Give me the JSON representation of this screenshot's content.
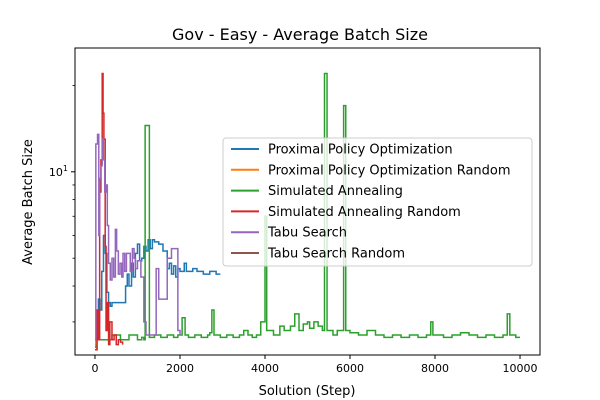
{
  "chart_data": {
    "type": "line",
    "title": "Gov - Easy - Average Batch Size",
    "xlabel": "Solution (Step)",
    "ylabel": "Average Batch Size",
    "x_ticks": [
      0,
      2000,
      4000,
      6000,
      8000,
      10000
    ],
    "x_tick_labels": [
      "0",
      "2000",
      "4000",
      "6000",
      "8000",
      "10000"
    ],
    "xlim": [
      -470,
      10470
    ],
    "y_scale": "log",
    "ylim": [
      2.3,
      27
    ],
    "y_major_ticks": [
      10
    ],
    "y_major_tick_labels": [
      "10^1"
    ],
    "y_minor_ticks": [
      3,
      4,
      5,
      6,
      7,
      8,
      9,
      20
    ],
    "grid": false,
    "legend_position": "center-right",
    "series": [
      {
        "name": "Proximal Policy Optimization",
        "color": "#1f77b4",
        "points": [
          [
            0,
            2.4
          ],
          [
            40,
            3.0
          ],
          [
            80,
            3.6
          ],
          [
            120,
            3.3
          ],
          [
            160,
            4.5
          ],
          [
            200,
            6.0
          ],
          [
            240,
            5.2
          ],
          [
            280,
            3.8
          ],
          [
            320,
            3.5
          ],
          [
            360,
            3.4
          ],
          [
            400,
            3.5
          ],
          [
            700,
            3.5
          ],
          [
            720,
            4.0
          ],
          [
            760,
            4.4
          ],
          [
            800,
            4.0
          ],
          [
            860,
            4.8
          ],
          [
            900,
            4.3
          ],
          [
            950,
            5.2
          ],
          [
            1000,
            5.6
          ],
          [
            1050,
            4.9
          ],
          [
            1100,
            5.0
          ],
          [
            1150,
            5.5
          ],
          [
            1200,
            5.3
          ],
          [
            1250,
            5.8
          ],
          [
            1300,
            5.4
          ],
          [
            1350,
            5.8
          ],
          [
            1400,
            5.7
          ],
          [
            1500,
            5.6
          ],
          [
            1600,
            5.3
          ],
          [
            1700,
            4.6
          ],
          [
            1750,
            4.8
          ],
          [
            1800,
            4.4
          ],
          [
            1850,
            4.7
          ],
          [
            1900,
            4.3
          ],
          [
            1950,
            4.6
          ],
          [
            2000,
            4.5
          ],
          [
            2100,
            4.8
          ],
          [
            2150,
            4.5
          ],
          [
            2300,
            4.6
          ],
          [
            2400,
            4.5
          ],
          [
            2550,
            4.4
          ],
          [
            2700,
            4.5
          ],
          [
            2850,
            4.4
          ],
          [
            2950,
            4.4
          ]
        ]
      },
      {
        "name": "Proximal Policy Optimization Random",
        "color": "#ff7f0e",
        "points": [
          [
            0,
            2.5
          ],
          [
            20,
            2.6
          ],
          [
            40,
            2.4
          ]
        ]
      },
      {
        "name": "Simulated Annealing",
        "color": "#2ca02c",
        "points": [
          [
            0,
            2.6
          ],
          [
            200,
            2.6
          ],
          [
            400,
            2.7
          ],
          [
            600,
            2.6
          ],
          [
            800,
            2.7
          ],
          [
            1000,
            2.6
          ],
          [
            1100,
            2.65
          ],
          [
            1150,
            2.6
          ],
          [
            1180,
            14.5
          ],
          [
            1260,
            14.5
          ],
          [
            1280,
            2.65
          ],
          [
            1400,
            2.7
          ],
          [
            1550,
            2.65
          ],
          [
            1700,
            2.7
          ],
          [
            1850,
            2.65
          ],
          [
            1950,
            2.7
          ],
          [
            2050,
            3.1
          ],
          [
            2120,
            2.7
          ],
          [
            2200,
            2.65
          ],
          [
            2350,
            2.7
          ],
          [
            2500,
            2.65
          ],
          [
            2650,
            2.7
          ],
          [
            2700,
            2.75
          ],
          [
            2750,
            3.3
          ],
          [
            2800,
            2.7
          ],
          [
            2950,
            2.65
          ],
          [
            3100,
            2.7
          ],
          [
            3250,
            2.65
          ],
          [
            3400,
            2.7
          ],
          [
            3500,
            2.8
          ],
          [
            3600,
            2.7
          ],
          [
            3700,
            2.65
          ],
          [
            3800,
            2.7
          ],
          [
            3900,
            3.0
          ],
          [
            3980,
            3.0
          ],
          [
            4000,
            7.0
          ],
          [
            4040,
            2.8
          ],
          [
            4200,
            2.7
          ],
          [
            4350,
            2.9
          ],
          [
            4450,
            2.8
          ],
          [
            4600,
            2.9
          ],
          [
            4700,
            3.2
          ],
          [
            4800,
            2.8
          ],
          [
            4900,
            2.95
          ],
          [
            5000,
            3.0
          ],
          [
            5050,
            2.85
          ],
          [
            5150,
            3.0
          ],
          [
            5250,
            2.9
          ],
          [
            5350,
            2.8
          ],
          [
            5400,
            22
          ],
          [
            5460,
            2.8
          ],
          [
            5600,
            2.7
          ],
          [
            5700,
            2.8
          ],
          [
            5850,
            17
          ],
          [
            5900,
            2.8
          ],
          [
            6000,
            2.75
          ],
          [
            6200,
            2.7
          ],
          [
            6400,
            2.8
          ],
          [
            6600,
            2.7
          ],
          [
            6800,
            2.65
          ],
          [
            7000,
            2.7
          ],
          [
            7200,
            2.65
          ],
          [
            7400,
            2.7
          ],
          [
            7600,
            2.65
          ],
          [
            7800,
            2.7
          ],
          [
            7900,
            3.0
          ],
          [
            7950,
            2.7
          ],
          [
            8200,
            2.65
          ],
          [
            8400,
            2.7
          ],
          [
            8600,
            2.75
          ],
          [
            8800,
            2.7
          ],
          [
            9000,
            2.65
          ],
          [
            9200,
            2.7
          ],
          [
            9400,
            2.65
          ],
          [
            9600,
            2.7
          ],
          [
            9700,
            3.2
          ],
          [
            9760,
            2.7
          ],
          [
            9900,
            2.65
          ],
          [
            10000,
            2.65
          ]
        ]
      },
      {
        "name": "Simulated Annealing Random",
        "color": "#d62728",
        "points": [
          [
            0,
            2.4
          ],
          [
            50,
            3.3
          ],
          [
            80,
            2.6
          ],
          [
            110,
            8.5
          ],
          [
            140,
            11
          ],
          [
            170,
            22
          ],
          [
            190,
            16
          ],
          [
            210,
            13
          ],
          [
            240,
            5.5
          ],
          [
            260,
            2.8
          ],
          [
            290,
            3.5
          ],
          [
            320,
            2.5
          ],
          [
            350,
            3.0
          ],
          [
            400,
            2.6
          ],
          [
            450,
            2.7
          ],
          [
            500,
            2.5
          ],
          [
            550,
            2.6
          ],
          [
            600,
            2.55
          ],
          [
            650,
            2.5
          ]
        ]
      },
      {
        "name": "Tabu Search",
        "color": "#9467bd",
        "points": [
          [
            0,
            2.6
          ],
          [
            20,
            12.5
          ],
          [
            60,
            13.5
          ],
          [
            90,
            6.0
          ],
          [
            110,
            9.5
          ],
          [
            140,
            10.5
          ],
          [
            170,
            13
          ],
          [
            200,
            11
          ],
          [
            230,
            8.5
          ],
          [
            260,
            9.0
          ],
          [
            290,
            6.5
          ],
          [
            320,
            4.8
          ],
          [
            360,
            4.2
          ],
          [
            400,
            5.0
          ],
          [
            440,
            4.3
          ],
          [
            480,
            6.3
          ],
          [
            510,
            5.3
          ],
          [
            550,
            4.4
          ],
          [
            590,
            4.8
          ],
          [
            630,
            4.3
          ],
          [
            660,
            5.2
          ],
          [
            700,
            4.5
          ],
          [
            740,
            5.2
          ],
          [
            800,
            5.2
          ],
          [
            830,
            4.5
          ],
          [
            880,
            5.4
          ],
          [
            920,
            5.0
          ],
          [
            950,
            4.6
          ],
          [
            1000,
            4.9
          ],
          [
            1080,
            4.3
          ],
          [
            1150,
            3.0
          ],
          [
            1200,
            2.7
          ],
          [
            1300,
            2.7
          ],
          [
            1400,
            2.7
          ],
          [
            1440,
            4.6
          ],
          [
            1500,
            3.6
          ],
          [
            1600,
            3.6
          ],
          [
            1700,
            5.0
          ],
          [
            1800,
            5.4
          ],
          [
            1900,
            5.4
          ],
          [
            1950,
            2.8
          ],
          [
            2000,
            2.7
          ]
        ]
      },
      {
        "name": "Tabu Search Random",
        "color": "#8c564b",
        "points": [
          [
            0,
            2.45
          ],
          [
            30,
            2.5
          ]
        ]
      }
    ]
  }
}
